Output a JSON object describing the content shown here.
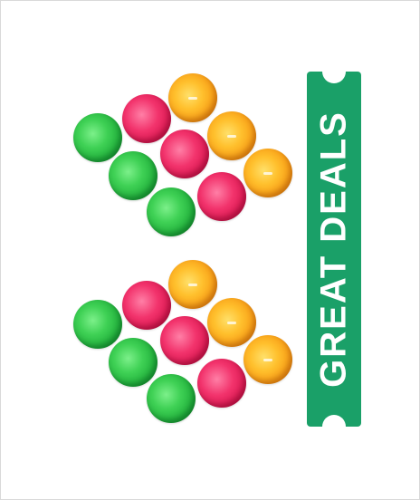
{
  "banner": {
    "text": "GREAT DEALS",
    "color": "#1aa068"
  },
  "colors": {
    "green": "#2fc24a",
    "pink": "#e61f5b",
    "orange": "#f9a81c"
  }
}
